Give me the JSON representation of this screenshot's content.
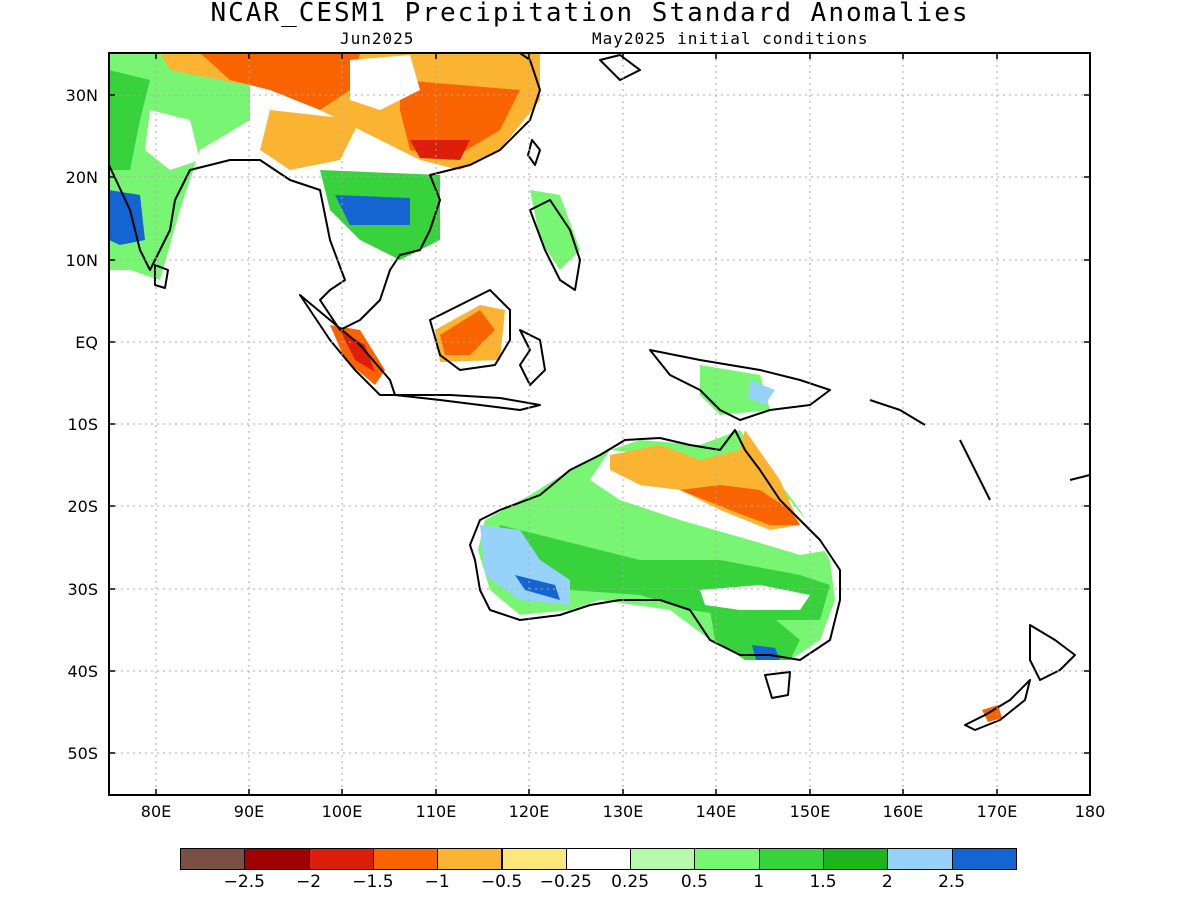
{
  "title": "NCAR_CESM1 Precipitation Standard Anomalies",
  "subtitle_month": "Jun2025",
  "subtitle_init": "May2025 initial conditions",
  "lat_labels": [
    "30N",
    "20N",
    "10N",
    "EQ",
    "10S",
    "20S",
    "30S",
    "40S",
    "50S"
  ],
  "lon_labels": [
    "80E",
    "90E",
    "100E",
    "110E",
    "120E",
    "130E",
    "140E",
    "150E",
    "160E",
    "170E",
    "180"
  ],
  "legend": {
    "colors": [
      "#7a5044",
      "#a00000",
      "#dc1e0a",
      "#fa6400",
      "#fab432",
      "#fde67a",
      "#ffffff",
      "#b4faaa",
      "#78f573",
      "#37d23c",
      "#1eb41e",
      "#96d2fa",
      "#1464d2"
    ],
    "labels": [
      "−2.5",
      "−2",
      "−1.5",
      "−1",
      "−0.5",
      "−0.25",
      "0.25",
      "0.5",
      "1",
      "1.5",
      "2",
      "2.5"
    ]
  }
}
